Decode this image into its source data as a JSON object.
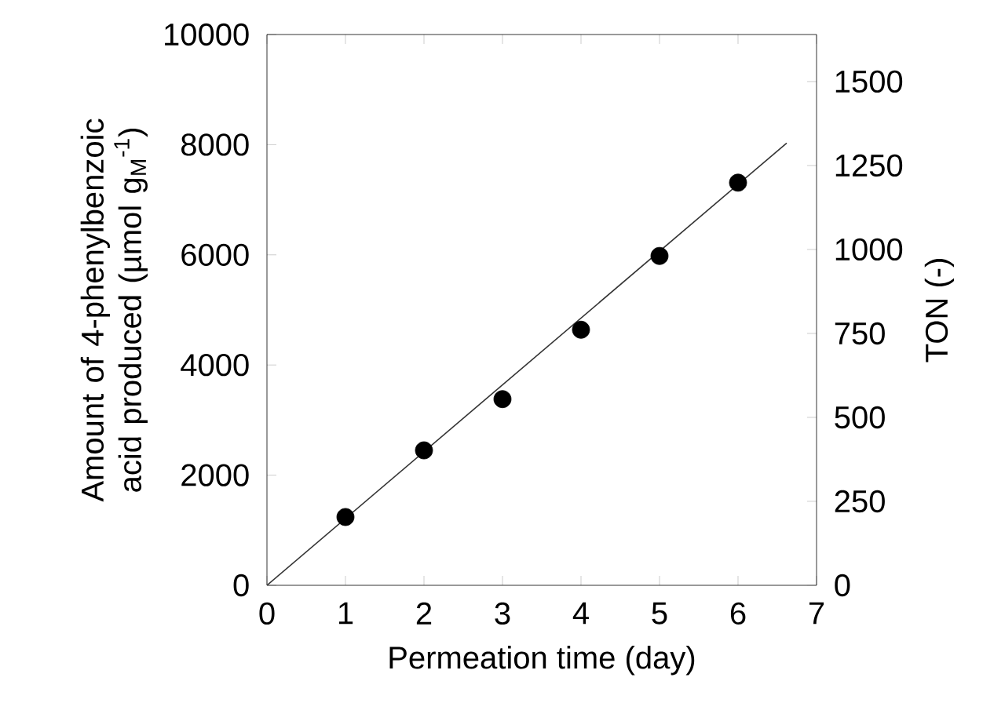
{
  "chart_data": {
    "type": "scatter",
    "xlabel": "Permeation time (day)",
    "ylabel": "Amount of 4-phenylbenzoic acid produced (µmol g$_{M}$$^{-1}$)",
    "y2label": "TON (-)",
    "xlim": [
      0,
      7
    ],
    "xticks": [
      0,
      1,
      2,
      3,
      4,
      5,
      6,
      7
    ],
    "ylim": [
      0,
      10000
    ],
    "yticks": [
      0,
      2000,
      4000,
      6000,
      8000,
      10000
    ],
    "y2lim": [
      0,
      1640
    ],
    "y2ticks": [
      0,
      250,
      500,
      750,
      1000,
      1250,
      1500
    ],
    "marker": "circle",
    "series": [
      {
        "color": "#000000",
        "x": [
          1,
          2,
          3,
          4,
          5,
          6
        ],
        "values": [
          1240,
          2450,
          3380,
          4640,
          5980,
          7310
        ]
      },
      {
        "type": "line",
        "color": "#333333",
        "marker": "none",
        "x": [
          0,
          6.62
        ],
        "values": [
          0,
          8030
        ]
      }
    ]
  }
}
